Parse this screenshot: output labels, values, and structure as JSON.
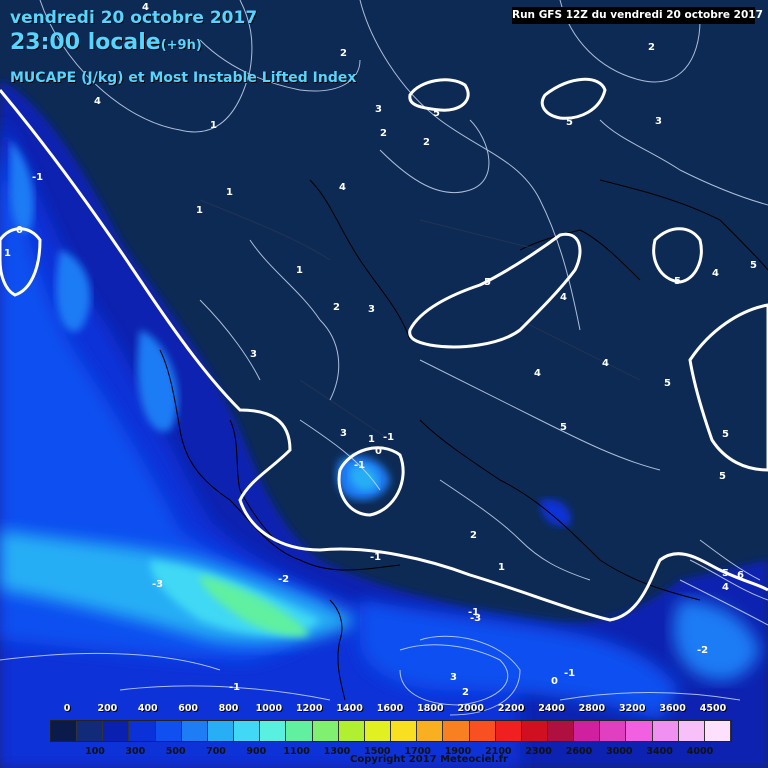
{
  "header": {
    "date": "vendredi 20 octobre 2017",
    "time": "23:00 locale",
    "offset": "(+9h)",
    "subtitle": "MUCAPE (J/kg) et Most Instable Lifted Index",
    "run": "Run GFS 12Z du vendredi 20 octobre 2017"
  },
  "legend": {
    "top_labels": [
      "0",
      "200",
      "400",
      "600",
      "800",
      "1000",
      "1200",
      "1400",
      "1600",
      "1800",
      "2000",
      "2200",
      "2400",
      "2800",
      "3200",
      "3600",
      "4500"
    ],
    "bottom_labels": [
      "100",
      "300",
      "500",
      "700",
      "900",
      "1100",
      "1300",
      "1500",
      "1700",
      "1900",
      "2100",
      "2300",
      "2600",
      "3000",
      "3400",
      "4000"
    ],
    "colors": [
      "#0a1a4a",
      "#112a7a",
      "#0a20b0",
      "#0a32d8",
      "#1050f0",
      "#1e7cf5",
      "#28aef5",
      "#40d8f5",
      "#5af0e0",
      "#60f0a0",
      "#80f070",
      "#b0f030",
      "#e0f020",
      "#f8e020",
      "#f8b020",
      "#f88020",
      "#f85020",
      "#f02020",
      "#d01020",
      "#b01040",
      "#d020a0",
      "#e040c0",
      "#f060e0",
      "#f090f0",
      "#f8c0f8",
      "#fce0fc"
    ],
    "copyright": "Copyright 2017 Meteociel.fr"
  },
  "map_labels": [
    "4",
    "2",
    "3",
    "5",
    "2",
    "5",
    "3",
    "2",
    "2",
    "4",
    "1",
    "1",
    "1",
    "0",
    "-1",
    "4",
    "1",
    "1",
    "2",
    "3",
    "3",
    "5",
    "4",
    "4",
    "4",
    "5",
    "5",
    "5",
    "5",
    "4",
    "5",
    "5",
    "-1",
    "-1",
    "1",
    "0",
    "3",
    "2",
    "1",
    "-1",
    "-2",
    "-3",
    "-3",
    "-1",
    "-2",
    "-1",
    "0",
    "3",
    "2",
    "6",
    "5",
    "4",
    "-1"
  ],
  "colors": {
    "background": "#0d2a55",
    "title": "#56d6ff"
  }
}
